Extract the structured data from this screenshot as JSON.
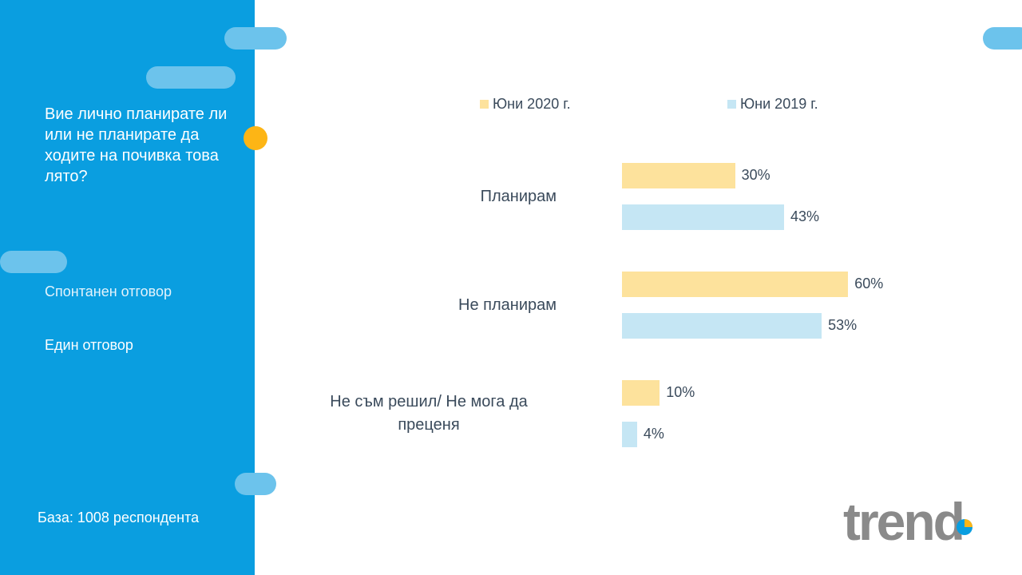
{
  "sidebar": {
    "question": "Вие лично планирате ли или не планирате да ходите на почивка това лято?",
    "note_spontaneous": "Спонтанен отговор",
    "note_single": "Един отговор",
    "base": "База: 1008 респондента"
  },
  "colors": {
    "sidebar": "#0a9ee0",
    "series_2020": "#fde29c",
    "series_2019": "#c5e6f4",
    "accent_dot": "#fdb515"
  },
  "logo": {
    "text": "trend"
  },
  "chart_data": {
    "type": "bar",
    "orientation": "horizontal",
    "categories": [
      "Планирам",
      "Не планирам",
      "Не съм решил/ Не мога да преценя"
    ],
    "series": [
      {
        "name": "Юни 2020 г.",
        "values": [
          30,
          60,
          10
        ],
        "labels": [
          "30%",
          "60%",
          "10%"
        ],
        "color": "#fde29c"
      },
      {
        "name": "Юни 2019 г.",
        "values": [
          43,
          53,
          4
        ],
        "labels": [
          "43%",
          "53%",
          "4%"
        ],
        "color": "#c5e6f4"
      }
    ],
    "xlim": [
      0,
      100
    ],
    "legend_position": "top",
    "grid": false
  }
}
